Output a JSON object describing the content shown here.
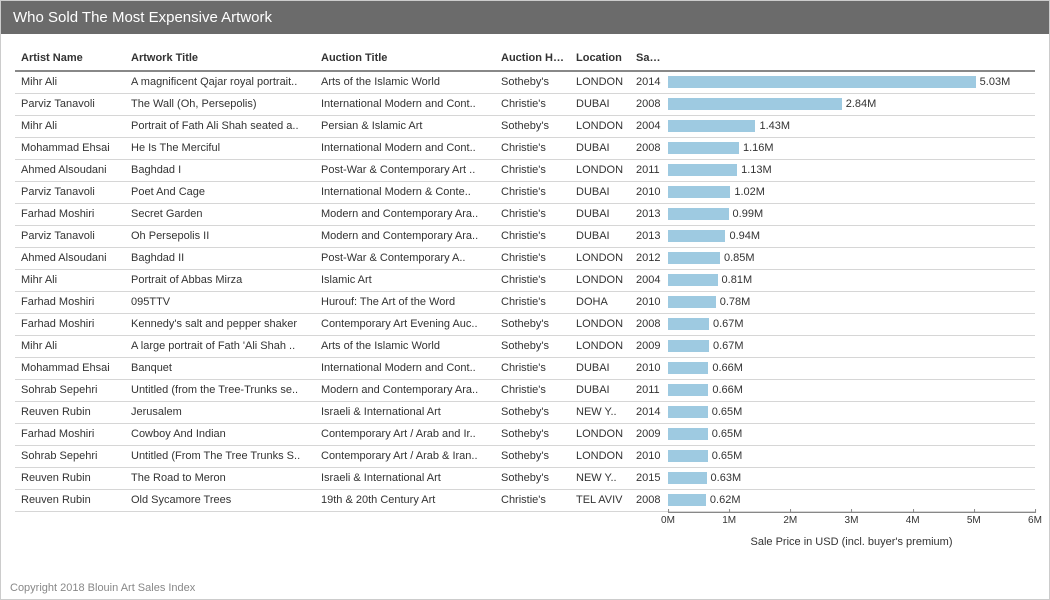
{
  "title": "Who Sold The Most Expensive Artwork",
  "footer": "Copyright 2018 Blouin Art Sales Index",
  "columns": [
    "Artist Name",
    "Artwork Title",
    "Auction Title",
    "Auction House",
    "Location",
    "Sale ..",
    ""
  ],
  "bar_color": "#9ecae1",
  "axis": {
    "max": 6.0,
    "ticks": [
      0,
      1,
      2,
      3,
      4,
      5,
      6
    ],
    "tick_labels": [
      "0M",
      "1M",
      "2M",
      "3M",
      "4M",
      "5M",
      "6M"
    ],
    "title": "Sale Price in USD (incl. buyer's premium)"
  },
  "rows": [
    {
      "artist": "Mihr Ali",
      "artwork": "A magnificent Qajar royal portrait..",
      "auction": "Arts of the Islamic World",
      "house": "Sotheby's",
      "loc": "LONDON",
      "year": "2014",
      "value": 5.03,
      "label": "5.03M"
    },
    {
      "artist": "Parviz Tanavoli",
      "artwork": "The Wall (Oh, Persepolis)",
      "auction": "International Modern and Cont..",
      "house": "Christie's",
      "loc": "DUBAI",
      "year": "2008",
      "value": 2.84,
      "label": "2.84M"
    },
    {
      "artist": "Mihr Ali",
      "artwork": "Portrait of Fath Ali Shah seated a..",
      "auction": "Persian & Islamic Art",
      "house": "Sotheby's",
      "loc": "LONDON",
      "year": "2004",
      "value": 1.43,
      "label": "1.43M"
    },
    {
      "artist": "Mohammad Ehsai",
      "artwork": "He Is The Merciful",
      "auction": "International Modern and Cont..",
      "house": "Christie's",
      "loc": "DUBAI",
      "year": "2008",
      "value": 1.16,
      "label": "1.16M"
    },
    {
      "artist": "Ahmed Alsoudani",
      "artwork": "Baghdad I",
      "auction": "Post-War & Contemporary Art ..",
      "house": "Christie's",
      "loc": "LONDON",
      "year": "2011",
      "value": 1.13,
      "label": "1.13M"
    },
    {
      "artist": "Parviz Tanavoli",
      "artwork": "Poet And Cage",
      "auction": "International Modern & Conte..",
      "house": "Christie's",
      "loc": "DUBAI",
      "year": "2010",
      "value": 1.02,
      "label": "1.02M"
    },
    {
      "artist": "Farhad Moshiri",
      "artwork": "Secret Garden",
      "auction": "Modern and Contemporary Ara..",
      "house": "Christie's",
      "loc": "DUBAI",
      "year": "2013",
      "value": 0.99,
      "label": "0.99M"
    },
    {
      "artist": "Parviz Tanavoli",
      "artwork": "Oh Persepolis II",
      "auction": "Modern and Contemporary Ara..",
      "house": "Christie's",
      "loc": "DUBAI",
      "year": "2013",
      "value": 0.94,
      "label": "0.94M"
    },
    {
      "artist": "Ahmed Alsoudani",
      "artwork": "Baghdad II",
      "auction": "Post-War & Contemporary A..",
      "house": "Christie's",
      "loc": "LONDON",
      "year": "2012",
      "value": 0.85,
      "label": "0.85M"
    },
    {
      "artist": "Mihr Ali",
      "artwork": "Portrait of Abbas Mirza",
      "auction": "Islamic Art",
      "house": "Christie's",
      "loc": "LONDON",
      "year": "2004",
      "value": 0.81,
      "label": "0.81M"
    },
    {
      "artist": "Farhad Moshiri",
      "artwork": "095TTV",
      "auction": "Hurouf: The Art of the Word",
      "house": "Christie's",
      "loc": "DOHA",
      "year": "2010",
      "value": 0.78,
      "label": "0.78M"
    },
    {
      "artist": "Farhad Moshiri",
      "artwork": "Kennedy's salt and pepper shaker",
      "auction": "Contemporary Art Evening Auc..",
      "house": "Sotheby's",
      "loc": "LONDON",
      "year": "2008",
      "value": 0.67,
      "label": "0.67M"
    },
    {
      "artist": "Mihr Ali",
      "artwork": "A large portrait of Fath 'Ali Shah ..",
      "auction": "Arts of the Islamic World",
      "house": "Sotheby's",
      "loc": "LONDON",
      "year": "2009",
      "value": 0.67,
      "label": "0.67M"
    },
    {
      "artist": "Mohammad Ehsai",
      "artwork": "Banquet",
      "auction": "International Modern and Cont..",
      "house": "Christie's",
      "loc": "DUBAI",
      "year": "2010",
      "value": 0.66,
      "label": "0.66M"
    },
    {
      "artist": "Sohrab Sepehri",
      "artwork": "Untitled (from the Tree-Trunks se..",
      "auction": "Modern and Contemporary Ara..",
      "house": "Christie's",
      "loc": "DUBAI",
      "year": "2011",
      "value": 0.66,
      "label": "0.66M"
    },
    {
      "artist": "Reuven Rubin",
      "artwork": "Jerusalem",
      "auction": "Israeli & International Art",
      "house": "Sotheby's",
      "loc": "NEW Y..",
      "year": "2014",
      "value": 0.65,
      "label": "0.65M"
    },
    {
      "artist": "Farhad Moshiri",
      "artwork": "Cowboy And Indian",
      "auction": "Contemporary Art / Arab and Ir..",
      "house": "Sotheby's",
      "loc": "LONDON",
      "year": "2009",
      "value": 0.65,
      "label": "0.65M"
    },
    {
      "artist": "Sohrab Sepehri",
      "artwork": "Untitled (From The Tree Trunks S..",
      "auction": "Contemporary Art / Arab & Iran..",
      "house": "Sotheby's",
      "loc": "LONDON",
      "year": "2010",
      "value": 0.65,
      "label": "0.65M"
    },
    {
      "artist": "Reuven Rubin",
      "artwork": "The Road to Meron",
      "auction": "Israeli & International Art",
      "house": "Sotheby's",
      "loc": "NEW Y..",
      "year": "2015",
      "value": 0.63,
      "label": "0.63M"
    },
    {
      "artist": "Reuven Rubin",
      "artwork": "Old Sycamore Trees",
      "auction": "19th & 20th Century Art",
      "house": "Christie's",
      "loc": "TEL AVIV",
      "year": "2008",
      "value": 0.62,
      "label": "0.62M"
    }
  ]
}
